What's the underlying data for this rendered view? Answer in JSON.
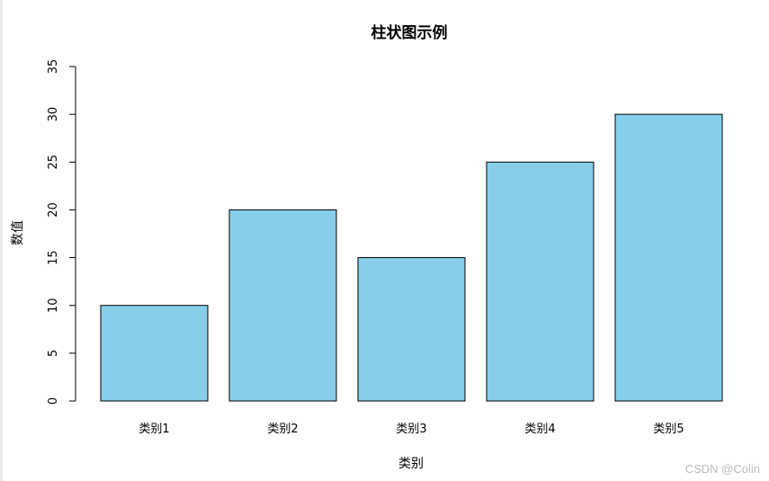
{
  "chart_data": {
    "type": "bar",
    "title": "柱状图示例",
    "xlabel": "类别",
    "ylabel": "数值",
    "categories": [
      "类别1",
      "类别2",
      "类别3",
      "类别4",
      "类别5"
    ],
    "values": [
      10,
      20,
      15,
      25,
      30
    ],
    "ylim": [
      0,
      35
    ],
    "yticks": [
      0,
      5,
      10,
      15,
      20,
      25,
      30,
      35
    ],
    "bar_color": "#87CEEB",
    "bar_border_color": "#000000",
    "grid": false,
    "legend": "none"
  },
  "watermark": "CSDN @Colin"
}
